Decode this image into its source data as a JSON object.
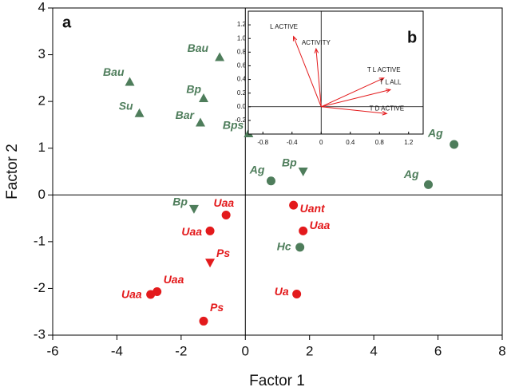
{
  "chart_data": [
    {
      "type": "scatter",
      "panel": "a",
      "x_label": "Factor 1",
      "y_label": "Factor 2",
      "xlim": [
        -6,
        8
      ],
      "ylim": [
        -3,
        4
      ],
      "xticks": [
        -6,
        -4,
        -2,
        0,
        2,
        4,
        6,
        8
      ],
      "yticks": [
        -3,
        -2,
        -1,
        0,
        1,
        2,
        3,
        4
      ],
      "points": [
        {
          "label": "Bau",
          "x": -0.8,
          "y": 2.95,
          "marker": "triangle-up",
          "color": "#4e7d5b"
        },
        {
          "label": "Bau",
          "x": -3.6,
          "y": 2.42,
          "marker": "triangle-up",
          "color": "#4e7d5b"
        },
        {
          "label": "Su",
          "x": -3.3,
          "y": 1.75,
          "marker": "triangle-up",
          "color": "#4e7d5b"
        },
        {
          "label": "Bp",
          "x": -1.3,
          "y": 2.07,
          "marker": "triangle-up",
          "color": "#4e7d5b"
        },
        {
          "label": "Bar",
          "x": -1.4,
          "y": 1.55,
          "marker": "triangle-up",
          "color": "#4e7d5b"
        },
        {
          "label": "Bps",
          "x": 0.1,
          "y": 1.32,
          "marker": "triangle-up",
          "color": "#4e7d5b"
        },
        {
          "label": "Bp",
          "x": 1.8,
          "y": 0.5,
          "marker": "triangle-down",
          "color": "#4e7d5b"
        },
        {
          "label": "Bp",
          "x": -1.6,
          "y": -0.3,
          "marker": "triangle-down",
          "color": "#4e7d5b"
        },
        {
          "label": "Ag",
          "x": 6.5,
          "y": 1.08,
          "marker": "circle",
          "color": "#4e7d5b"
        },
        {
          "label": "Ag",
          "x": 5.7,
          "y": 0.22,
          "marker": "circle",
          "color": "#4e7d5b"
        },
        {
          "label": "Ag",
          "x": 0.8,
          "y": 0.3,
          "marker": "circle",
          "color": "#4e7d5b"
        },
        {
          "label": "Hc",
          "x": 1.7,
          "y": -1.12,
          "marker": "circle",
          "color": "#4e7d5b"
        },
        {
          "label": "Uaa",
          "x": -0.6,
          "y": -0.43,
          "marker": "circle",
          "color": "#e31a1c"
        },
        {
          "label": "Uant",
          "x": 1.5,
          "y": -0.22,
          "marker": "circle",
          "color": "#e31a1c"
        },
        {
          "label": "Uaa",
          "x": 1.8,
          "y": -0.77,
          "marker": "circle",
          "color": "#e31a1c"
        },
        {
          "label": "Uaa",
          "x": -1.1,
          "y": -0.77,
          "marker": "circle",
          "color": "#e31a1c"
        },
        {
          "label": "Ps",
          "x": -1.1,
          "y": -1.45,
          "marker": "triangle-down",
          "color": "#e31a1c"
        },
        {
          "label": "Uaa",
          "x": -2.75,
          "y": -2.07,
          "marker": "circle",
          "color": "#e31a1c"
        },
        {
          "label": "Uaa",
          "x": -2.95,
          "y": -2.13,
          "marker": "circle",
          "color": "#e31a1c"
        },
        {
          "label": "Ps",
          "x": -1.3,
          "y": -2.7,
          "marker": "circle",
          "color": "#e31a1c"
        },
        {
          "label": "Ua",
          "x": 1.6,
          "y": -2.12,
          "marker": "circle",
          "color": "#e31a1c"
        }
      ]
    },
    {
      "type": "biplot",
      "panel": "b",
      "xlim": [
        -1.0,
        1.4
      ],
      "ylim": [
        -0.4,
        1.4
      ],
      "xticks": [
        -0.8,
        -0.4,
        0,
        0.4,
        0.8,
        1.2
      ],
      "yticks": [
        -0.2,
        {
          "value": 0,
          "label": "0.0"
        },
        0.2,
        0.4,
        0.6,
        0.8,
        {
          "value": 1,
          "label": "1.0"
        },
        1.2
      ],
      "color": "#e31a1c",
      "loadings": [
        {
          "label": "L ACTIVE",
          "x": -0.38,
          "y": 1.03
        },
        {
          "label": "ACTIVITY",
          "x": -0.07,
          "y": 0.85
        },
        {
          "label": "T L ACTIVE",
          "x": 0.86,
          "y": 0.42
        },
        {
          "label": "T L ALL",
          "x": 0.95,
          "y": 0.25
        },
        {
          "label": "T D ACTIVE",
          "x": 0.9,
          "y": -0.1
        }
      ]
    }
  ]
}
